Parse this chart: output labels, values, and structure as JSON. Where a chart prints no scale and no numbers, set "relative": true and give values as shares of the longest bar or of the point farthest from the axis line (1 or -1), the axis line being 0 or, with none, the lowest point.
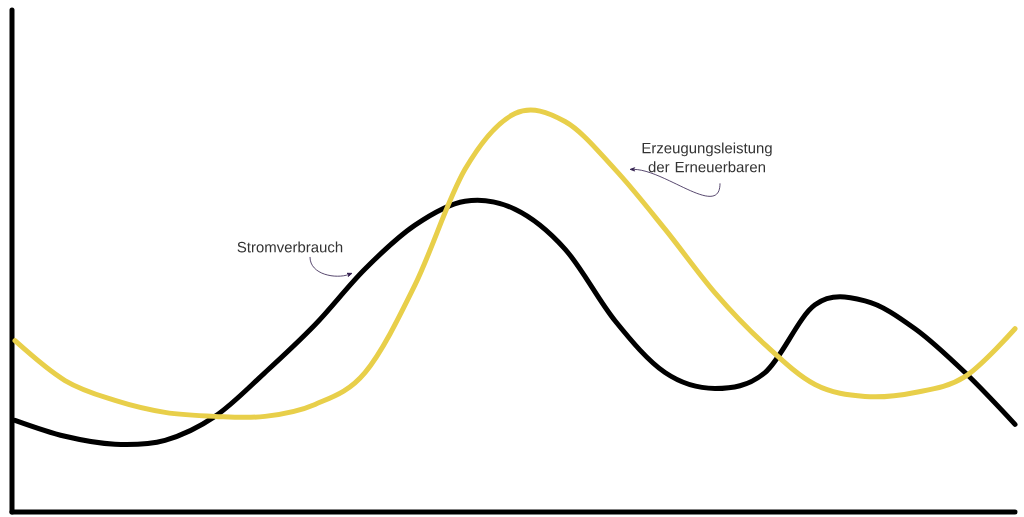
{
  "chart_data": {
    "type": "line",
    "relative": true,
    "line_style": "solid",
    "marker": "none",
    "categories": [
      null,
      null,
      null,
      null,
      null,
      null,
      null,
      null,
      null,
      null,
      null,
      null,
      null,
      null,
      null,
      null,
      null,
      null,
      null,
      null,
      null
    ],
    "series": [
      {
        "name": "Stromverbrauch",
        "color": "#000000",
        "values": [
          0.23,
          0.19,
          0.17,
          0.18,
          0.24,
          0.35,
          0.47,
          0.61,
          0.72,
          0.78,
          0.76,
          0.66,
          0.48,
          0.35,
          0.31,
          0.35,
          0.52,
          0.53,
          0.46,
          0.35,
          0.22
        ]
      },
      {
        "name": "Erzeugungsleistung der Erneuerbaren",
        "color": "#e8cf4a",
        "values": [
          0.43,
          0.33,
          0.28,
          0.25,
          0.24,
          0.24,
          0.27,
          0.35,
          0.57,
          0.86,
          1.0,
          0.98,
          0.86,
          0.71,
          0.55,
          0.42,
          0.32,
          0.29,
          0.3,
          0.34,
          0.46
        ]
      }
    ]
  }
}
